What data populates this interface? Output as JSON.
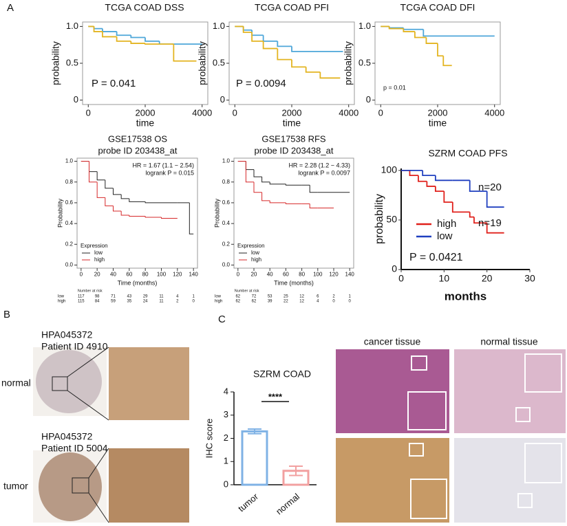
{
  "panel_labels": [
    "A",
    "B",
    "C"
  ],
  "histology": {
    "b": [
      {
        "antibody": "HPA045372",
        "patient": "Patient ID 4910",
        "tissue": "normal"
      },
      {
        "antibody": "HPA045372",
        "patient": "Patient ID 5004",
        "tissue": "tumor"
      }
    ],
    "c": {
      "columns": [
        "cancer tissue",
        "normal tissue"
      ]
    }
  },
  "chart_data": [
    {
      "type": "km",
      "title": "TCGA COAD DSS",
      "xlabel": "time",
      "ylabel": "probability",
      "xlim": [
        -200,
        4200
      ],
      "xticks": [
        0,
        2000,
        4000
      ],
      "ylim": [
        -0.06,
        1.06
      ],
      "yticks": [
        0,
        0.5,
        {
          "value": 1,
          "label": "1.0"
        }
      ],
      "annotations": [
        "P = 0.041"
      ],
      "series": [
        {
          "color": "#4da6d9",
          "x": [
            0,
            200,
            500,
            1000,
            1500,
            2000,
            2500,
            3000,
            4000
          ],
          "values": [
            1,
            0.97,
            0.93,
            0.88,
            0.85,
            0.8,
            0.76,
            0.76,
            0.76
          ]
        },
        {
          "color": "#e3b420",
          "x": [
            0,
            200,
            500,
            1000,
            1500,
            2000,
            2500,
            3000,
            3800
          ],
          "values": [
            1,
            0.93,
            0.86,
            0.8,
            0.77,
            0.76,
            0.76,
            0.53,
            0.53
          ]
        }
      ]
    },
    {
      "type": "km",
      "title": "TCGA COAD PFI",
      "xlabel": "time",
      "ylabel": "probability",
      "xlim": [
        -200,
        4200
      ],
      "xticks": [
        0,
        2000,
        4000
      ],
      "ylim": [
        -0.06,
        1.06
      ],
      "yticks": [
        0,
        0.5,
        {
          "value": 1,
          "label": "1.0"
        }
      ],
      "annotations": [
        "P = 0.0094"
      ],
      "series": [
        {
          "color": "#4da6d9",
          "x": [
            0,
            300,
            600,
            1000,
            1500,
            2000,
            3800
          ],
          "values": [
            1,
            0.95,
            0.88,
            0.8,
            0.73,
            0.66,
            0.66
          ]
        },
        {
          "color": "#e3b420",
          "x": [
            0,
            300,
            600,
            1000,
            1500,
            2000,
            2500,
            3000,
            3700
          ],
          "values": [
            1,
            0.92,
            0.8,
            0.7,
            0.55,
            0.45,
            0.38,
            0.3,
            0.3
          ]
        }
      ]
    },
    {
      "type": "km",
      "title": "TCGA COAD DFI",
      "xlabel": "time",
      "ylabel": "probability",
      "xlim": [
        -200,
        4200
      ],
      "xticks": [
        0,
        2000,
        4000
      ],
      "ylim": [
        -0.06,
        1.06
      ],
      "yticks": [
        0,
        0.5,
        {
          "value": 1,
          "label": "1.0"
        }
      ],
      "annotations": [
        "p = 0.01"
      ],
      "series": [
        {
          "color": "#4da6d9",
          "x": [
            0,
            300,
            800,
            1500,
            2000,
            4000
          ],
          "values": [
            1,
            0.98,
            0.96,
            0.87,
            0.87,
            0.87
          ]
        },
        {
          "color": "#e3b420",
          "x": [
            0,
            300,
            800,
            1200,
            1600,
            2000,
            2200,
            2500
          ],
          "values": [
            1,
            0.97,
            0.93,
            0.85,
            0.77,
            0.6,
            0.47,
            0.47
          ]
        }
      ]
    },
    {
      "type": "km",
      "title": "GSE17538 OS",
      "subtitle": "probe ID 203438_at",
      "xlabel": "Time (months)",
      "ylabel": "Probability",
      "xlim": [
        -5,
        145
      ],
      "xticks": [
        0,
        20,
        40,
        60,
        80,
        100,
        120,
        140
      ],
      "ylim": [
        -0.03,
        1.03
      ],
      "yticks": [
        {
          "value": 0,
          "label": "0.0"
        },
        0.2,
        0.4,
        0.6,
        0.8,
        {
          "value": 1,
          "label": "1.0"
        }
      ],
      "annotations": [
        "HR = 1.67 (1.1 − 2.54)",
        "logrank P = 0.015"
      ],
      "legend_title": "Expression",
      "risk_title": "Number at risk",
      "series": [
        {
          "name": "low",
          "color": "#222222",
          "x": [
            0,
            10,
            20,
            30,
            40,
            50,
            60,
            80,
            100,
            120,
            135,
            140
          ],
          "values": [
            1,
            0.9,
            0.82,
            0.74,
            0.68,
            0.64,
            0.61,
            0.6,
            0.6,
            0.6,
            0.3,
            0.3
          ],
          "at_risk": [
            117,
            98,
            71,
            43,
            29,
            11,
            4,
            1
          ]
        },
        {
          "name": "high",
          "color": "#d62728",
          "x": [
            0,
            10,
            20,
            30,
            40,
            50,
            60,
            80,
            100,
            120
          ],
          "values": [
            1,
            0.8,
            0.65,
            0.57,
            0.52,
            0.48,
            0.47,
            0.46,
            0.45,
            0.45
          ],
          "at_risk": [
            115,
            84,
            59,
            35,
            24,
            11,
            2,
            0
          ]
        }
      ]
    },
    {
      "type": "km",
      "title": "GSE17538 RFS",
      "subtitle": "probe ID 203438_at",
      "xlabel": "Time (months)",
      "ylabel": "Probability",
      "xlim": [
        -5,
        145
      ],
      "xticks": [
        0,
        20,
        40,
        60,
        80,
        100,
        120,
        140
      ],
      "ylim": [
        -0.03,
        1.03
      ],
      "yticks": [
        {
          "value": 0,
          "label": "0.0"
        },
        0.2,
        0.4,
        0.6,
        0.8,
        {
          "value": 1,
          "label": "1.0"
        }
      ],
      "annotations": [
        "HR = 2.28 (1.2 − 4.33)",
        "logrank P = 0.0097"
      ],
      "legend_title": "Expression",
      "risk_title": "Number at risk",
      "series": [
        {
          "name": "low",
          "color": "#222222",
          "x": [
            0,
            10,
            20,
            30,
            40,
            60,
            80,
            90,
            100,
            120,
            140
          ],
          "values": [
            1,
            0.92,
            0.85,
            0.8,
            0.78,
            0.77,
            0.77,
            0.7,
            0.7,
            0.7,
            0.7
          ],
          "at_risk": [
            62,
            72,
            53,
            25,
            12,
            6,
            2,
            1
          ]
        },
        {
          "name": "high",
          "color": "#d62728",
          "x": [
            0,
            10,
            20,
            30,
            40,
            60,
            80,
            90,
            100,
            120
          ],
          "values": [
            1,
            0.8,
            0.7,
            0.62,
            0.6,
            0.59,
            0.59,
            0.55,
            0.55,
            0.55
          ],
          "at_risk": [
            62,
            62,
            39,
            22,
            12,
            4,
            0,
            0
          ]
        }
      ]
    },
    {
      "type": "km",
      "title": "SZRM COAD PFS",
      "xlabel": "months",
      "ylabel": "probability",
      "xlim": [
        0,
        30
      ],
      "xticks": [
        0,
        10,
        20,
        30
      ],
      "ylim": [
        0,
        102
      ],
      "yticks": [
        0,
        50,
        100
      ],
      "annotations": [
        "n=20",
        "n=19",
        "P = 0.0421"
      ],
      "series": [
        {
          "name": "high",
          "color": "#e0201b",
          "x": [
            0,
            2,
            4,
            6,
            8,
            10,
            12,
            16,
            17,
            20,
            24
          ],
          "values": [
            100,
            95,
            89,
            84,
            79,
            68,
            58,
            53,
            47,
            37,
            37
          ]
        },
        {
          "name": "low",
          "color": "#1f3fbf",
          "x": [
            0,
            5,
            8,
            12,
            16,
            20,
            24
          ],
          "values": [
            100,
            95,
            90,
            90,
            79,
            63,
            63
          ]
        }
      ]
    },
    {
      "type": "bar",
      "title": "SZRM COAD",
      "ylabel": "IHC score",
      "ylim": [
        0,
        4
      ],
      "yticks": [
        0,
        1,
        2,
        3,
        4
      ],
      "categories": [
        "tumor",
        "normal"
      ],
      "values": [
        2.3,
        0.6
      ],
      "errors": [
        0.1,
        0.2
      ],
      "colors": [
        "#7fb2e5",
        "#f2a0a0"
      ],
      "annotations": [
        "****"
      ]
    }
  ]
}
